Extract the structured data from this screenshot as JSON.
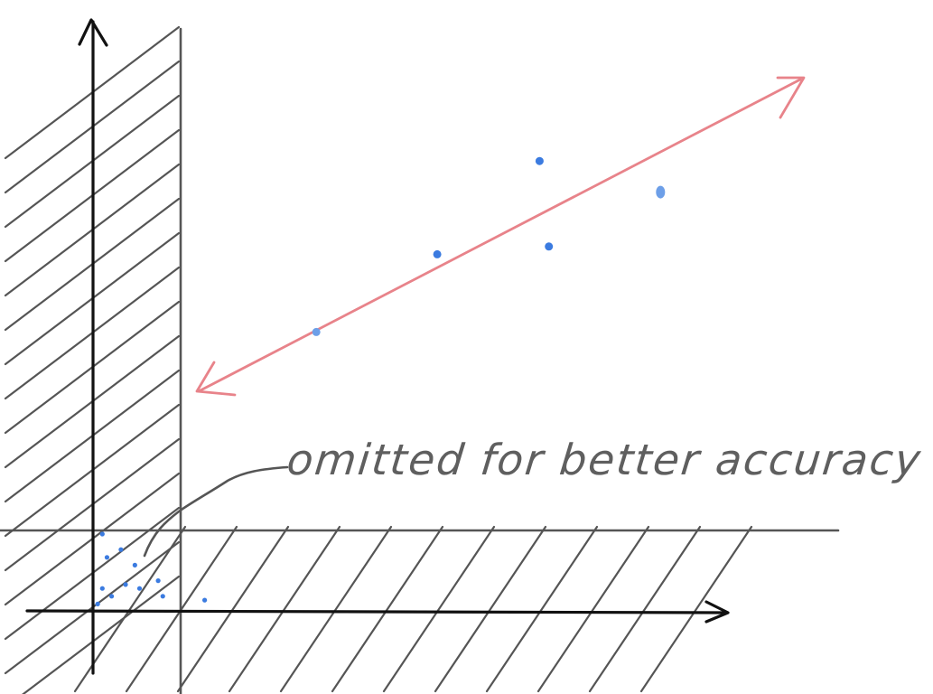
{
  "annotation": {
    "text": "omitted for better accuracy"
  },
  "colors": {
    "axis": "#111111",
    "hatch": "#555555",
    "threshold_line": "#555555",
    "double_arrow": "#e8838a",
    "point": "#3b7be0",
    "point_light": "#6d9fe8",
    "annotation_text": "#5f5f5f"
  },
  "chart_data": {
    "type": "scatter",
    "title": "",
    "xlabel": "",
    "ylabel": "",
    "axes": "arrow-headed x and y axes, no ticks or tick labels",
    "shaded_regions": [
      "left band along the y-axis (hatched)",
      "bottom band along the x-axis (hatched)"
    ],
    "series": [
      {
        "points_main": [
          [
            2.4,
            3.6
          ],
          [
            3.7,
            4.6
          ],
          [
            4.8,
            5.8
          ],
          [
            4.9,
            4.7
          ],
          [
            6.1,
            5.4
          ]
        ],
        "points_near_origin": [
          [
            0.1,
            1.0
          ],
          [
            0.15,
            0.7
          ],
          [
            0.3,
            0.8
          ],
          [
            0.45,
            0.6
          ],
          [
            0.35,
            0.35
          ],
          [
            0.1,
            0.3
          ],
          [
            0.2,
            0.2
          ],
          [
            0.5,
            0.3
          ],
          [
            0.7,
            0.4
          ],
          [
            0.75,
            0.2
          ],
          [
            1.2,
            0.15
          ],
          [
            0.05,
            0.1
          ]
        ]
      }
    ],
    "trend": "double-headed arrow from about (1.2, 2.5) to (7.4, 6.9)",
    "xlim": [
      0,
      8
    ],
    "ylim": [
      0,
      7
    ]
  }
}
